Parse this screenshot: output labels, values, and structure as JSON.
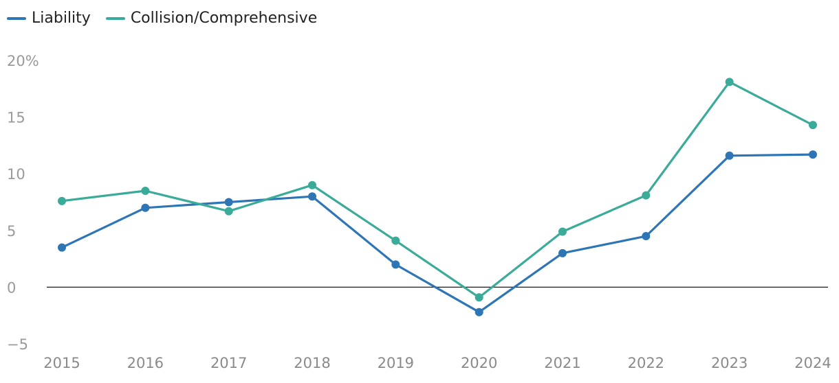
{
  "chart_data": {
    "type": "line",
    "categories": [
      "2015",
      "2016",
      "2017",
      "2018",
      "2019",
      "2020",
      "2021",
      "2022",
      "2023",
      "2024"
    ],
    "series": [
      {
        "name": "Liability",
        "color": "#2e75b6",
        "values": [
          3.5,
          7.0,
          7.5,
          8.0,
          2.0,
          -2.2,
          3.0,
          4.5,
          11.6,
          11.7
        ]
      },
      {
        "name": "Collision/Comprehensive",
        "color": "#3aaa99",
        "values": [
          7.6,
          8.5,
          6.7,
          9.0,
          4.1,
          -0.9,
          4.9,
          8.1,
          18.1,
          14.3
        ]
      }
    ],
    "yticks": [
      "20%",
      "15",
      "10",
      "5",
      "0",
      "−5"
    ],
    "ytick_values": [
      20,
      15,
      10,
      5,
      0,
      -5
    ],
    "ylim": [
      -5,
      20
    ],
    "grid": false,
    "zero_line": true,
    "legend_position": "top-left",
    "title": "",
    "xlabel": "",
    "ylabel": ""
  }
}
